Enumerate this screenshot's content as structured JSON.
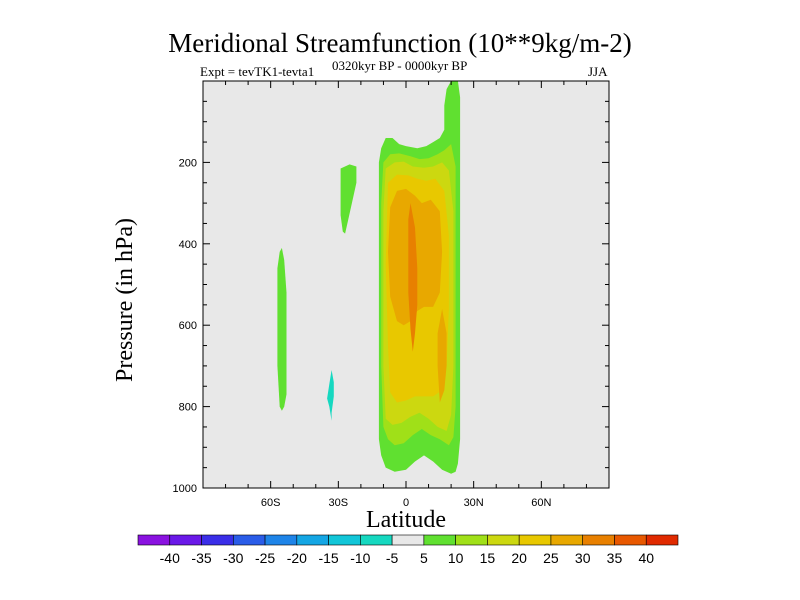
{
  "title": "Meridional Streamfunction (10**9kg/m-2)",
  "subtitle_left": "Expt = tevTK1-tevta1",
  "subtitle_center": "0320kyr BP - 0000kyr BP",
  "subtitle_right": "JJA",
  "chart_data": {
    "type": "contour",
    "title": "Meridional Streamfunction (10**9kg/m-2)",
    "xlabel": "Latitude",
    "ylabel": "Pressure (in hPa)",
    "xlim": [
      -90,
      90
    ],
    "ylim": [
      1000,
      0
    ],
    "x_ticks": [
      {
        "value": -60,
        "label": "60S"
      },
      {
        "value": -30,
        "label": "30S"
      },
      {
        "value": 0,
        "label": "0"
      },
      {
        "value": 30,
        "label": "30N"
      },
      {
        "value": 60,
        "label": "60N"
      }
    ],
    "y_ticks": [
      {
        "value": 200,
        "label": "200"
      },
      {
        "value": 400,
        "label": "400"
      },
      {
        "value": 600,
        "label": "600"
      },
      {
        "value": 800,
        "label": "800"
      },
      {
        "value": 1000,
        "label": "1000"
      }
    ],
    "background_color": "#e8e8e8",
    "contour_levels": [
      -40,
      -35,
      -30,
      -25,
      -20,
      -15,
      -10,
      -5,
      5,
      10,
      15,
      20,
      25,
      30,
      35,
      40
    ],
    "colorbar_colors": [
      "#8a12e0",
      "#6a18e8",
      "#3a2ee8",
      "#2a5ce8",
      "#1e84e8",
      "#14a6e4",
      "#12c6d8",
      "#16d8c0",
      "#e8e8e8",
      "#60e030",
      "#a0e018",
      "#ccd810",
      "#e8c800",
      "#e8a800",
      "#e88000",
      "#e85800",
      "#e02a00"
    ],
    "regions": [
      {
        "name": "weak-positive-60S",
        "value": 7.5,
        "color": "#60e030",
        "points": [
          [
            -55,
            410
          ],
          [
            -54,
            440
          ],
          [
            -53,
            520
          ],
          [
            -53,
            650
          ],
          [
            -53,
            770
          ],
          [
            -54,
            800
          ],
          [
            -55,
            810
          ],
          [
            -56,
            800
          ],
          [
            -57,
            700
          ],
          [
            -57,
            560
          ],
          [
            -57,
            460
          ],
          [
            -56,
            420
          ]
        ]
      },
      {
        "name": "weak-positive-25S",
        "value": 7.5,
        "color": "#60e030",
        "points": [
          [
            -29,
            215
          ],
          [
            -25,
            205
          ],
          [
            -22,
            210
          ],
          [
            -22,
            250
          ],
          [
            -24,
            300
          ],
          [
            -26,
            350
          ],
          [
            -27,
            375
          ],
          [
            -28,
            370
          ],
          [
            -29,
            330
          ],
          [
            -29,
            280
          ]
        ]
      },
      {
        "name": "weak-negative-32S",
        "value": -7.5,
        "color": "#16d8c0",
        "points": [
          [
            -33,
            710
          ],
          [
            -32,
            740
          ],
          [
            -32,
            775
          ],
          [
            -33,
            815
          ],
          [
            -33,
            835
          ],
          [
            -34,
            800
          ],
          [
            -35,
            780
          ],
          [
            -34,
            745
          ]
        ]
      },
      {
        "name": "band-5",
        "value": 7.5,
        "color": "#60e030",
        "points": [
          [
            -11,
            165
          ],
          [
            -9,
            140
          ],
          [
            -6,
            140
          ],
          [
            -3,
            155
          ],
          [
            0,
            160
          ],
          [
            5,
            165
          ],
          [
            9,
            160
          ],
          [
            12,
            150
          ],
          [
            15,
            140
          ],
          [
            17,
            120
          ],
          [
            17,
            60
          ],
          [
            18,
            20
          ],
          [
            20,
            0
          ],
          [
            23,
            0
          ],
          [
            24,
            40
          ],
          [
            24,
            100
          ],
          [
            24,
            200
          ],
          [
            24,
            400
          ],
          [
            24,
            600
          ],
          [
            24,
            800
          ],
          [
            24,
            880
          ],
          [
            23,
            940
          ],
          [
            22,
            960
          ],
          [
            20,
            965
          ],
          [
            16,
            955
          ],
          [
            12,
            935
          ],
          [
            8,
            920
          ],
          [
            4,
            935
          ],
          [
            0,
            955
          ],
          [
            -5,
            960
          ],
          [
            -9,
            950
          ],
          [
            -11,
            920
          ],
          [
            -12,
            880
          ],
          [
            -12,
            700
          ],
          [
            -12,
            500
          ],
          [
            -12,
            300
          ],
          [
            -12,
            200
          ]
        ]
      },
      {
        "name": "band-10",
        "value": 12.5,
        "color": "#a0e018",
        "points": [
          [
            -10,
            200
          ],
          [
            -7,
            180
          ],
          [
            -3,
            178
          ],
          [
            2,
            185
          ],
          [
            6,
            192
          ],
          [
            10,
            190
          ],
          [
            14,
            180
          ],
          [
            17,
            170
          ],
          [
            20,
            155
          ],
          [
            22,
            210
          ],
          [
            22,
            400
          ],
          [
            22,
            600
          ],
          [
            22,
            800
          ],
          [
            21,
            875
          ],
          [
            19,
            895
          ],
          [
            15,
            880
          ],
          [
            11,
            870
          ],
          [
            7,
            855
          ],
          [
            3,
            870
          ],
          [
            -1,
            890
          ],
          [
            -5,
            895
          ],
          [
            -8,
            880
          ],
          [
            -10,
            850
          ],
          [
            -11,
            700
          ],
          [
            -11,
            500
          ],
          [
            -11,
            300
          ]
        ]
      },
      {
        "name": "band-15",
        "value": 17.5,
        "color": "#ccd810",
        "points": [
          [
            -9,
            215
          ],
          [
            -5,
            200
          ],
          [
            -1,
            198
          ],
          [
            3,
            210
          ],
          [
            8,
            213
          ],
          [
            12,
            210
          ],
          [
            16,
            200
          ],
          [
            19,
            220
          ],
          [
            21,
            320
          ],
          [
            21,
            500
          ],
          [
            21,
            700
          ],
          [
            20,
            820
          ],
          [
            18,
            860
          ],
          [
            14,
            850
          ],
          [
            10,
            830
          ],
          [
            6,
            815
          ],
          [
            2,
            825
          ],
          [
            -2,
            840
          ],
          [
            -6,
            845
          ],
          [
            -9,
            830
          ],
          [
            -10,
            700
          ],
          [
            -10,
            500
          ],
          [
            -10,
            320
          ]
        ]
      },
      {
        "name": "band-20",
        "value": 22.5,
        "color": "#e8c800",
        "points": [
          [
            -8,
            250
          ],
          [
            -4,
            230
          ],
          [
            1,
            232
          ],
          [
            5,
            240
          ],
          [
            9,
            245
          ],
          [
            13,
            240
          ],
          [
            17,
            270
          ],
          [
            19,
            380
          ],
          [
            19,
            560
          ],
          [
            18,
            700
          ],
          [
            16,
            760
          ],
          [
            12,
            775
          ],
          [
            8,
            775
          ],
          [
            4,
            775
          ],
          [
            0,
            785
          ],
          [
            -4,
            790
          ],
          [
            -7,
            765
          ],
          [
            -8,
            650
          ],
          [
            -9,
            450
          ]
        ]
      },
      {
        "name": "band-25",
        "value": 27.5,
        "color": "#e8a800",
        "points": [
          [
            -7,
            310
          ],
          [
            -4,
            270
          ],
          [
            0,
            265
          ],
          [
            4,
            282
          ],
          [
            7,
            300
          ],
          [
            11,
            292
          ],
          [
            15,
            320
          ],
          [
            16,
            420
          ],
          [
            15,
            520
          ],
          [
            12,
            555
          ],
          [
            8,
            555
          ],
          [
            5,
            565
          ],
          [
            2,
            590
          ],
          [
            -1,
            600
          ],
          [
            -4,
            590
          ],
          [
            -7,
            530
          ],
          [
            -8,
            420
          ]
        ]
      },
      {
        "name": "band-25-north-lobe",
        "value": 27.5,
        "color": "#e8a800",
        "points": [
          [
            16,
            560
          ],
          [
            18,
            620
          ],
          [
            18,
            700
          ],
          [
            17,
            760
          ],
          [
            15,
            790
          ],
          [
            14,
            700
          ],
          [
            14,
            620
          ]
        ]
      },
      {
        "name": "band-30",
        "value": 32.5,
        "color": "#e88000",
        "points": [
          [
            2,
            300
          ],
          [
            4,
            360
          ],
          [
            5,
            460
          ],
          [
            5,
            550
          ],
          [
            4,
            620
          ],
          [
            3,
            665
          ],
          [
            2,
            610
          ],
          [
            1,
            520
          ],
          [
            1,
            420
          ],
          [
            1,
            340
          ]
        ]
      }
    ]
  },
  "colorbar": {
    "labels": [
      "-40",
      "-35",
      "-30",
      "-25",
      "-20",
      "-15",
      "-10",
      "-5",
      "5",
      "10",
      "15",
      "20",
      "25",
      "30",
      "35",
      "40"
    ]
  }
}
